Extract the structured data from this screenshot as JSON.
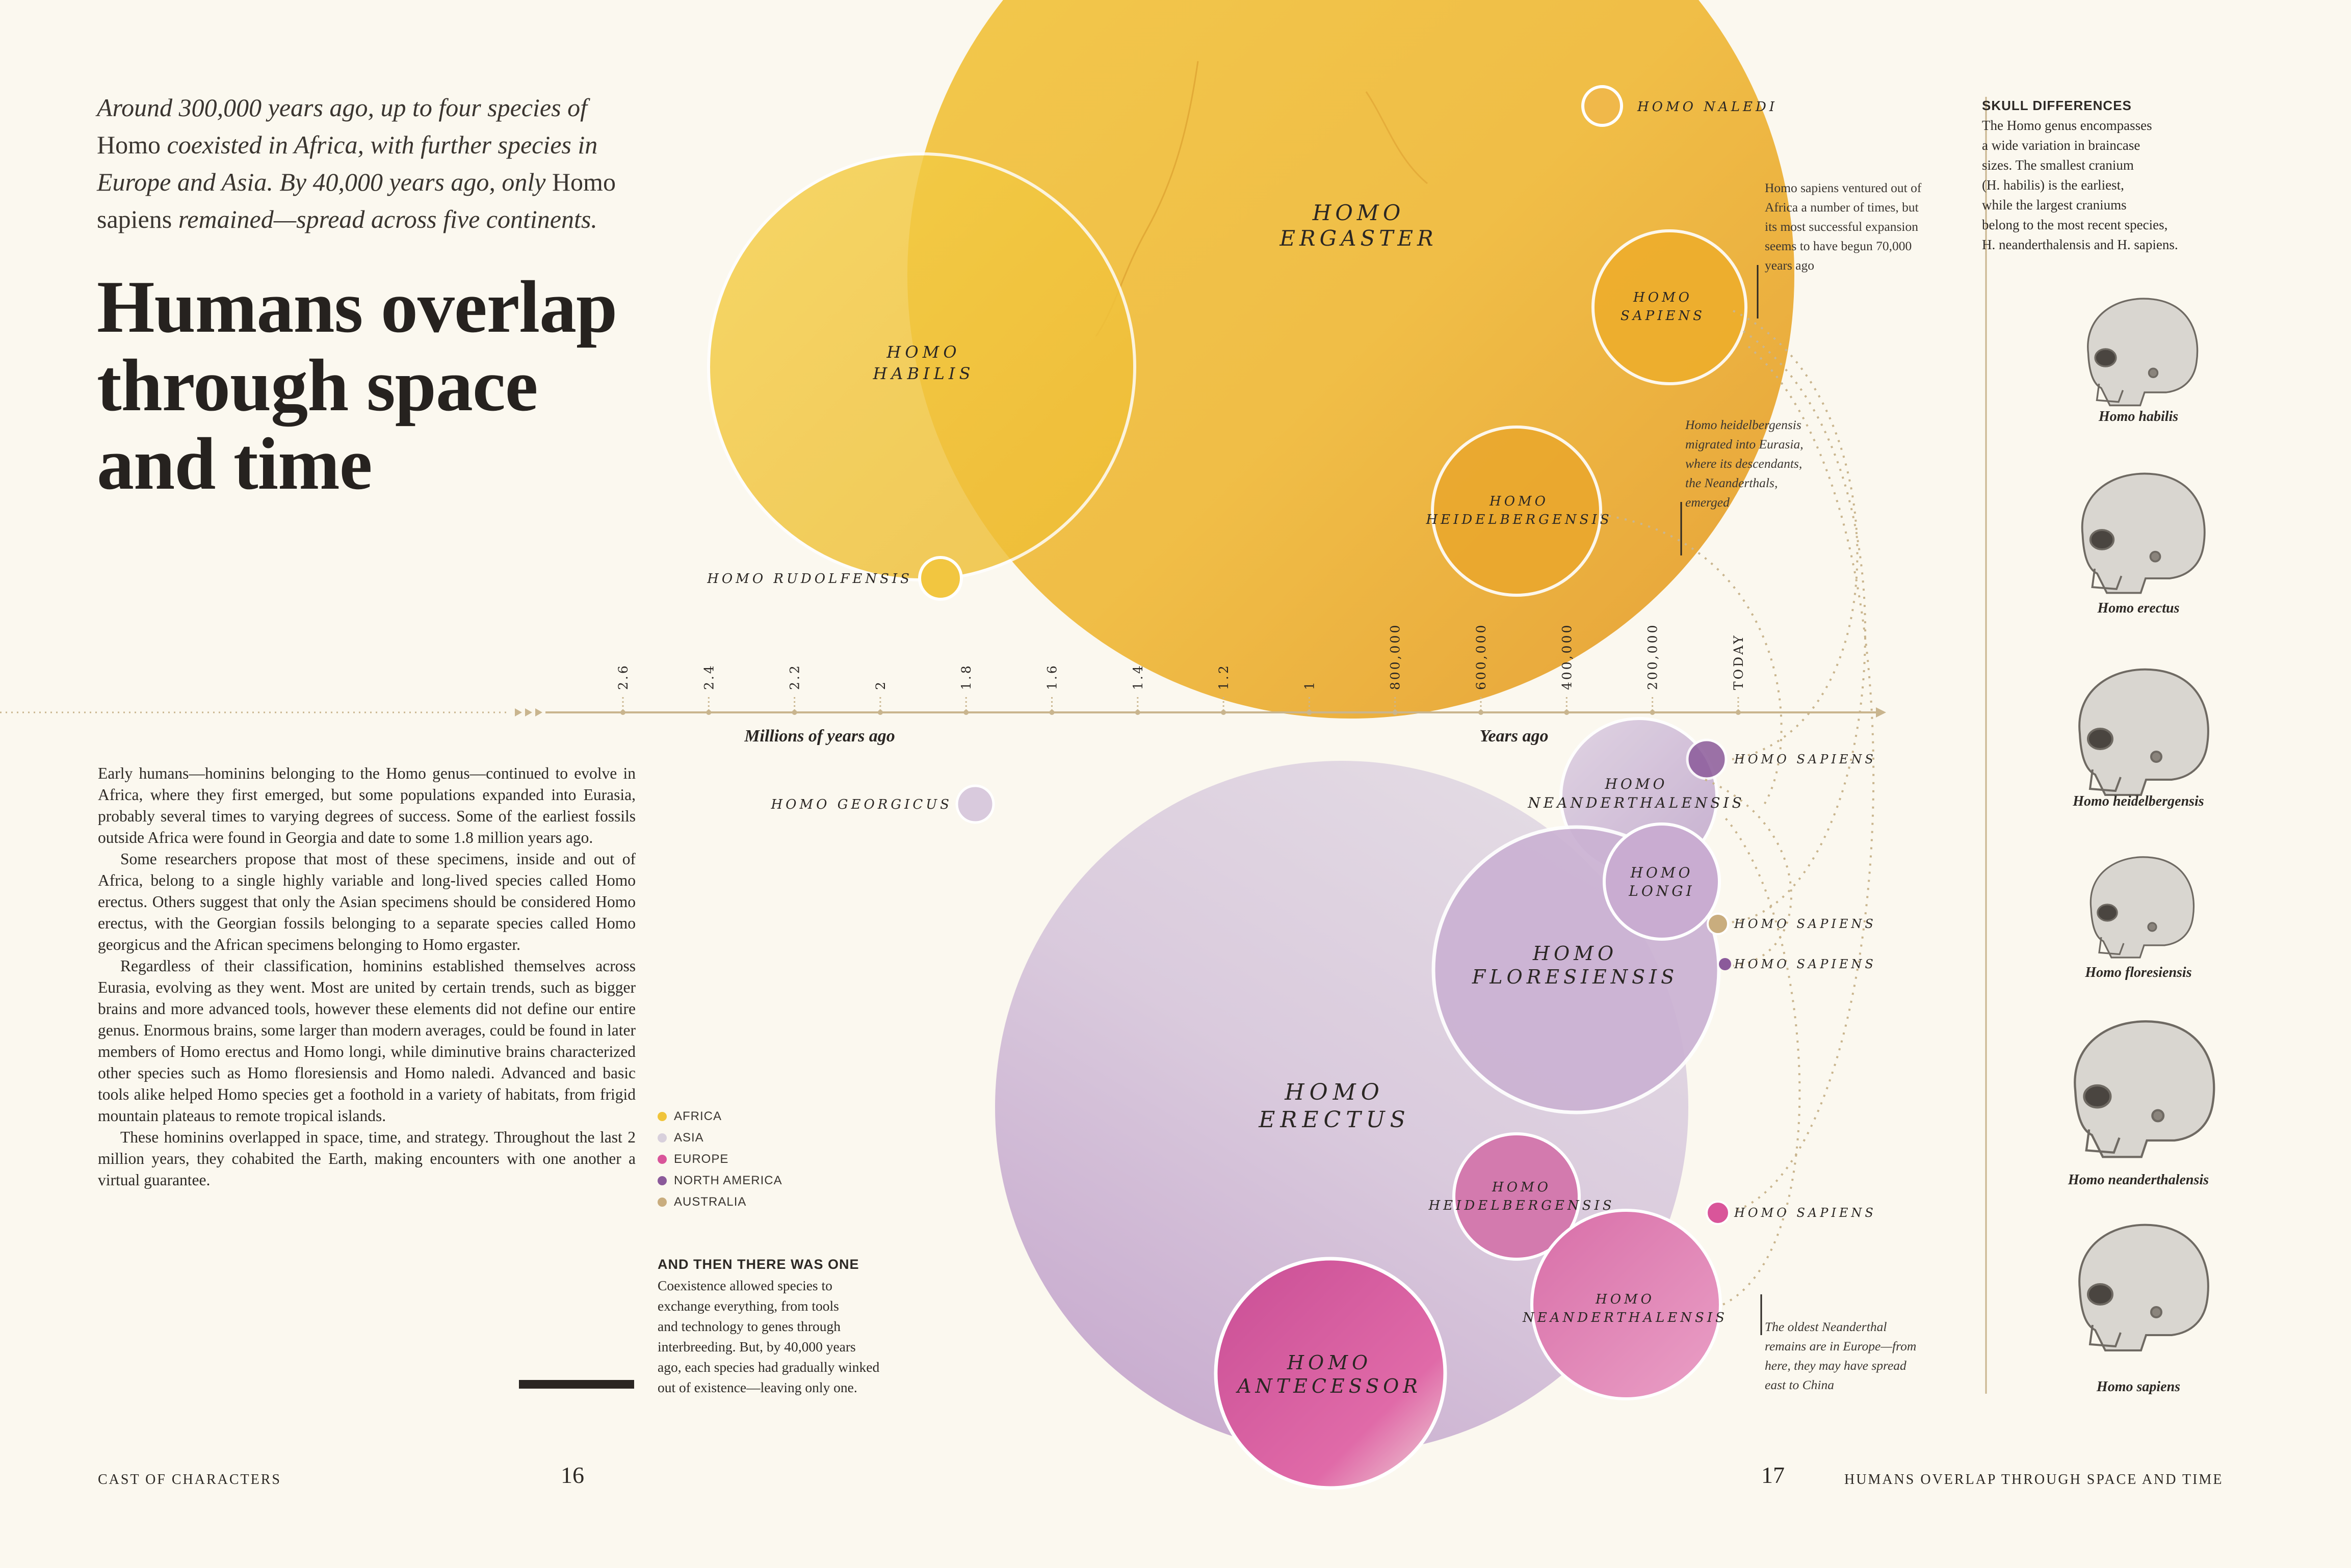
{
  "intro": {
    "line1": "Around 300,000 years ago, up to four species of",
    "line2a": "Homo",
    "line2b": " coexisted in Africa, with further species in",
    "line3": "Europe and Asia. By 40,000 years ago, only",
    "line3b": " Homo",
    "line4a": "sapiens",
    "line4b": " remained—spread across five continents."
  },
  "headline": {
    "line1": "Humans overlap",
    "line2": "through space",
    "line3": "and time"
  },
  "body": {
    "p1": "Early humans—hominins belonging to the Homo genus—continued to evolve in Africa, where they first emerged, but some populations expanded into Eurasia, probably several times to varying degrees of success. Some of the earliest fossils outside Africa were found in Georgia and date to some 1.8 million years ago.",
    "p2": "Some researchers propose that most of these specimens, inside and out of Africa, belong to a single highly variable and long-lived species called Homo erectus. Others suggest that only the Asian specimens should be considered Homo erectus, with the Georgian fossils belonging to a separate species called Homo georgicus and the African specimens belonging to Homo ergaster.",
    "p3": "Regardless of their classification, hominins established themselves across Eurasia, evolving as they went. Most are united by certain trends, such as bigger brains and more advanced tools, however these elements did not define our entire genus. Enormous brains, some larger than modern averages, could be found in later members of Homo erectus and Homo longi, while diminutive brains characterized other species such as Homo floresiensis and Homo naledi. Advanced and basic tools alike helped Homo species get a foothold in a variety of habitats, from frigid mountain plateaus to remote tropical islands.",
    "p4": "These hominins overlapped in space, time, and strategy. Throughout the last 2 million years, they cohabited the Earth, making encounters with one another a virtual guarantee."
  },
  "legend": {
    "items": [
      {
        "label": "AFRICA",
        "color": "#f0c43a"
      },
      {
        "label": "ASIA",
        "color": "#d8d0dc"
      },
      {
        "label": "EUROPE",
        "color": "#d9559a"
      },
      {
        "label": "NORTH AMERICA",
        "color": "#8b5a9a"
      },
      {
        "label": "AUSTRALIA",
        "color": "#c9ad7e"
      }
    ]
  },
  "aside": {
    "heading": "AND THEN THERE WAS ONE",
    "lines": [
      "Coexistence allowed species to",
      "exchange everything, from tools",
      "and technology to genes through",
      "interbreeding. But, by 40,000 years",
      "ago, each species had gradually winked",
      "out of existence—leaving only one."
    ]
  },
  "footer": {
    "left": "CAST OF CHARACTERS",
    "left_page": "16",
    "right_page": "17",
    "right": "HUMANS OVERLAP THROUGH SPACE AND TIME"
  },
  "timeline": {
    "millions_label": "Millions of years ago",
    "years_label": "Years ago",
    "ticks": [
      "2.6",
      "2.4",
      "2.2",
      "2",
      "1.8",
      "1.6",
      "1.4",
      "1.2",
      "1",
      "800,000",
      "600,000",
      "400,000",
      "200,000",
      "TODAY"
    ]
  },
  "africa_circles": {
    "ergaster": [
      "HOMO",
      "ERGASTER"
    ],
    "habilis": [
      "HOMO",
      "HABILIS"
    ],
    "naledi": "HOMO NALEDI",
    "sapiens": [
      "HOMO",
      "SAPIENS"
    ],
    "heidelbergensis": [
      "HOMO",
      "HEIDELBERGENSIS"
    ],
    "rudolfensis": "HOMO RUDOLFENSIS"
  },
  "eurasia_circles": {
    "georgicus": "HOMO GEORGICUS",
    "erectus": [
      "HOMO",
      "ERECTUS"
    ],
    "neanderthalensis_asia": [
      "HOMO",
      "NEANDERTHALENSIS"
    ],
    "longi": [
      "HOMO",
      "LONGI"
    ],
    "floresiensis": [
      "HOMO",
      "FLORESIENSIS"
    ],
    "heidelbergensis_eu": [
      "HOMO",
      "HEIDELBERGENSIS"
    ],
    "neanderthalensis_eu": [
      "HOMO",
      "NEANDERTHALENSIS"
    ],
    "antecessor": [
      "HOMO",
      "ANTECESSOR"
    ],
    "sapiens_asia": "HOMO SAPIENS",
    "sapiens_aus": "HOMO SAPIENS",
    "sapiens_na": "HOMO SAPIENS",
    "sapiens_eu": "HOMO SAPIENS"
  },
  "notes": {
    "sapiens": [
      "Homo sapiens ventured out of",
      "Africa a number of times, but",
      "its most successful expansion",
      "seems to have begun 70,000",
      "years ago"
    ],
    "heidel": [
      "Homo heidelbergensis",
      "migrated into Eurasia,",
      "where its descendants,",
      "the Neanderthals,",
      "emerged"
    ],
    "neander": [
      "The oldest Neanderthal",
      "remains are in Europe—from",
      "here, they may have spread",
      "east to China"
    ]
  },
  "skulls": {
    "heading": "SKULL DIFFERENCES",
    "lines": [
      "The Homo genus encompasses",
      "a wide variation in braincase",
      "sizes. The smallest cranium",
      "(H. habilis) is the earliest,",
      "while the largest craniums",
      "belong to the most recent species,",
      "H. neanderthalensis and H. sapiens."
    ],
    "captions": [
      "Homo habilis",
      "Homo erectus",
      "Homo heidelbergensis",
      "Homo floresiensis",
      "Homo neanderthalensis",
      "Homo sapiens"
    ]
  }
}
